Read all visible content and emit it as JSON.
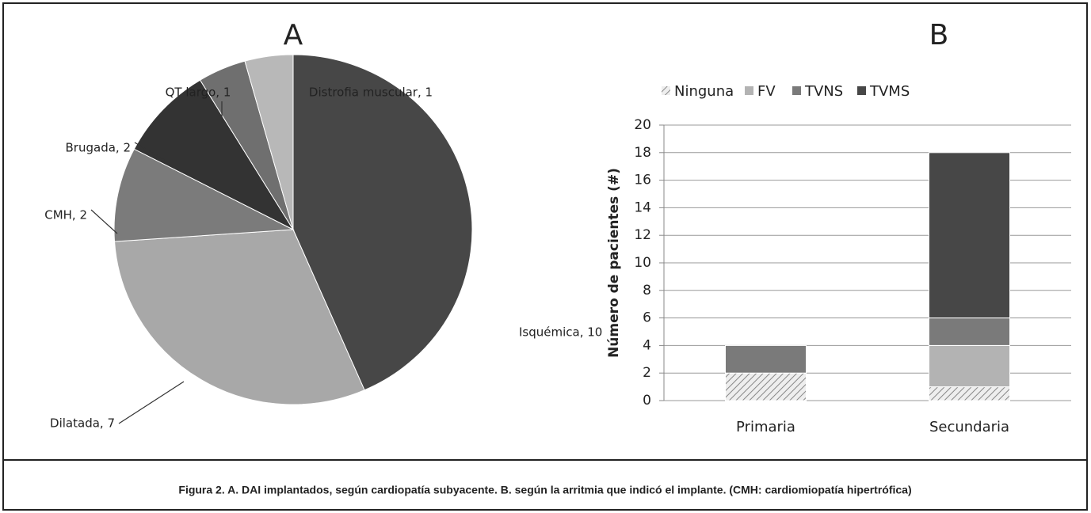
{
  "chart_data": [
    {
      "type": "pie",
      "title": "A",
      "categories": [
        "Isquémica",
        "Dilatada",
        "CMH",
        "Brugada",
        "QT largo",
        "Distrofia muscular"
      ],
      "values": [
        10,
        7,
        2,
        2,
        1,
        1
      ],
      "value_labels": [
        "Isquémica, 10",
        "Dilatada, 7",
        "CMH, 2",
        "Brugada, 2",
        "QT largo, 1",
        "Distrofia muscular, 1"
      ],
      "colors": [
        "#474747",
        "#a8a8a8",
        "#7b7b7b",
        "#333333",
        "#6f6f6f",
        "#b8b8b8"
      ]
    },
    {
      "type": "stacked_bar",
      "title": "B",
      "ylabel": "Número de pacientes (#)",
      "categories": [
        "Primaria",
        "Secundaria"
      ],
      "series": [
        {
          "name": "Ninguna",
          "color": "#bdbdbd",
          "hatch": true,
          "values": [
            2,
            1
          ]
        },
        {
          "name": "FV",
          "color": "#b3b3b3",
          "values": [
            0,
            3
          ]
        },
        {
          "name": "TVNS",
          "color": "#7a7a7a",
          "values": [
            2,
            2
          ]
        },
        {
          "name": "TVMS",
          "color": "#474747",
          "values": [
            0,
            12
          ]
        }
      ],
      "ylim": [
        0,
        20
      ],
      "yticks": [
        0,
        2,
        4,
        6,
        8,
        10,
        12,
        14,
        16,
        18,
        20
      ],
      "grid": true,
      "legend": "top"
    }
  ],
  "caption": "Figura 2. A. DAI implantados, según cardiopatía subyacente. B. según la arritmia que indicó el implante. (CMH: cardiomiopatía hipertrófica)"
}
